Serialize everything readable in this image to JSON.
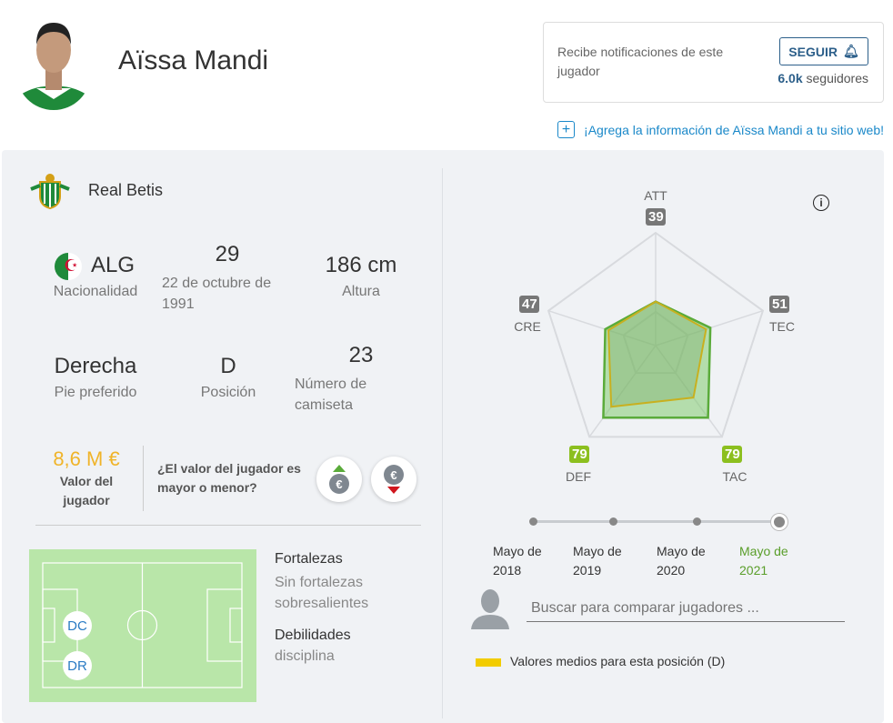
{
  "player": {
    "name": "Aïssa Mandi"
  },
  "notifications": {
    "text": "Recibe notificaciones de este jugador",
    "follow_label": "SEGUIR",
    "followers_count": "6.0k",
    "followers_label": "seguidores"
  },
  "add_info_link": "¡Agrega la información de Aïssa Mandi a tu sitio web!",
  "club": {
    "name": "Real Betis"
  },
  "stats": {
    "nationality": {
      "value": "ALG",
      "label": "Nacionalidad"
    },
    "age": {
      "value": "29",
      "label": "22 de octubre de 1991"
    },
    "height": {
      "value": "186 cm",
      "label": "Altura"
    },
    "foot": {
      "value": "Derecha",
      "label": "Pie preferido"
    },
    "position": {
      "value": "D",
      "label": "Posición"
    },
    "shirt": {
      "value": "23",
      "label": "Número de camiseta"
    }
  },
  "value": {
    "amount": "8,6 M €",
    "label": "Valor del jugador",
    "question": "¿El valor del jugador es mayor o menor?",
    "euro": "€"
  },
  "field": {
    "positions": [
      "DC",
      "DR"
    ]
  },
  "strengths": {
    "title": "Fortalezas",
    "text": "Sin fortalezas sobresalientes"
  },
  "weaknesses": {
    "title": "Debilidades",
    "text": "disciplina"
  },
  "chart_data": {
    "type": "radar",
    "axes": [
      "ATT",
      "TEC",
      "TAC",
      "DEF",
      "CRE"
    ],
    "range": [
      0,
      100
    ],
    "series": [
      {
        "name": "Aïssa Mandi",
        "values": [
          39,
          51,
          79,
          79,
          47
        ],
        "color": "#5aab3a"
      },
      {
        "name": "Valores medios para esta posición (D)",
        "values": [
          39,
          47,
          57,
          67,
          44
        ],
        "color": "#e6c300"
      }
    ],
    "badge_colors": [
      "#777777",
      "#777777",
      "#8cbf1f",
      "#8cbf1f",
      "#777777"
    ]
  },
  "timeline": {
    "items": [
      "Mayo de 2018",
      "Mayo de 2019",
      "Mayo de 2020",
      "Mayo de 2021"
    ],
    "selected": 3
  },
  "compare": {
    "placeholder": "Buscar para comparar jugadores ..."
  },
  "legend": {
    "label": "Valores medios para esta posición (D)"
  }
}
